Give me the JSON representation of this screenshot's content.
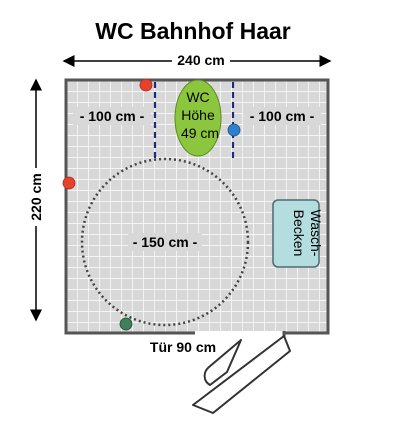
{
  "title": "WC Bahnhof Haar",
  "width_label": "240 cm",
  "height_label": "220 cm",
  "left_clearance_label": "- 100 cm -",
  "right_clearance_label": "- 100 cm -",
  "circle_label": "- 150 cm -",
  "door_label": "Tür 90 cm",
  "toilet": {
    "line1": "WC",
    "line2": "Höhe",
    "line3": "49 cm"
  },
  "sink": {
    "line1": "Wasch-",
    "line2": "Becken"
  },
  "colors": {
    "floor": "#d8d8d8",
    "grid": "#ffffff",
    "wall": "#555555",
    "toilet": "#8cc63f",
    "sink": "#b4dde0",
    "clearance_lines": "#1f2a7a",
    "dot_red": "#e8402a",
    "dot_blue": "#2e7fd0",
    "dot_green": "#3f7f5a"
  }
}
